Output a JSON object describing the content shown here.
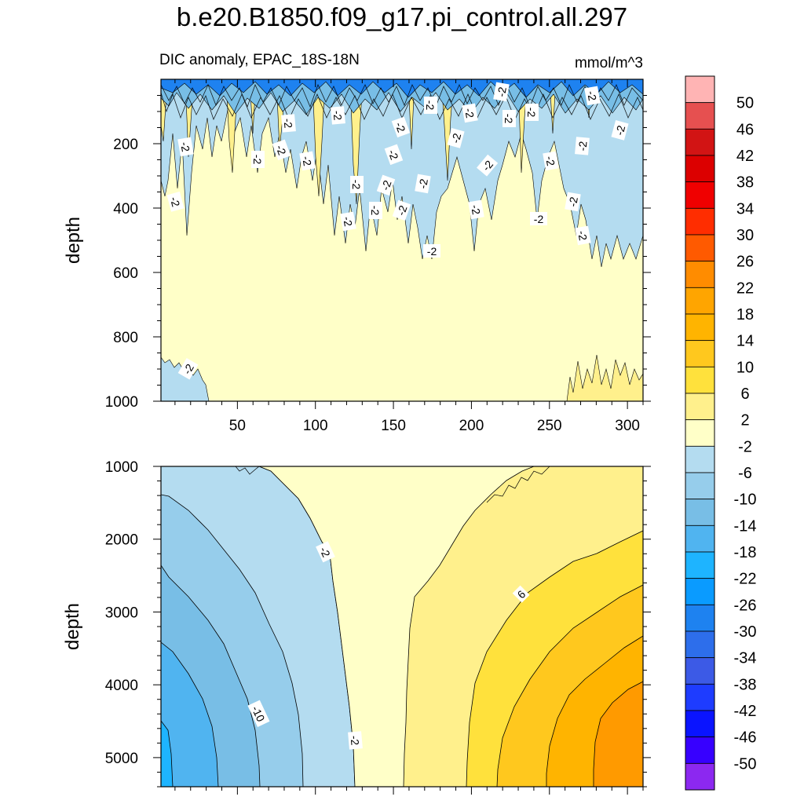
{
  "chart_data": {
    "type": "contour",
    "title": "b.e20.B1850.f09_g17.pi_control.all.297",
    "subtitle_left": "DIC anomaly, EPAC_18S-18N",
    "subtitle_right": "mmol/m^3",
    "colorbar": {
      "levels": [
        "50",
        "46",
        "42",
        "38",
        "34",
        "30",
        "26",
        "22",
        "18",
        "14",
        "10",
        "6",
        "2",
        "-2",
        "-6",
        "-10",
        "-14",
        "-18",
        "-22",
        "-26",
        "-30",
        "-34",
        "-38",
        "-42",
        "-46",
        "-50"
      ],
      "colors": [
        "#ffb4b4",
        "#e65050",
        "#d21414",
        "#dc0000",
        "#f00000",
        "#ff2d00",
        "#ff5a00",
        "#ff8c00",
        "#ffa500",
        "#ffb400",
        "#ffc81e",
        "#ffe13c",
        "#fff08c",
        "#ffffc8",
        "#b4dcf0",
        "#96cdeb",
        "#78bee6",
        "#50b4f0",
        "#1eb4ff",
        "#0a9bff",
        "#1e82f0",
        "#2d6eeb",
        "#3c5ae6",
        "#1e3cff",
        "#0a14ff",
        "#3700ff",
        "#8c28f0"
      ]
    },
    "panels": [
      {
        "name": "upper",
        "xlabel": "",
        "ylabel": "depth",
        "xlim": [
          1,
          310
        ],
        "ylim": [
          0,
          1000
        ],
        "y_reversed": true,
        "xticks": [
          "50",
          "100",
          "150",
          "200",
          "250",
          "300"
        ],
        "yticks": [
          "200",
          "400",
          "600",
          "800",
          "1000"
        ],
        "contour_labels": [
          "-2",
          "-2",
          "-2",
          "-2",
          "-2",
          "-2",
          "-2",
          "-2",
          "-2",
          "-2",
          "-2",
          "-2",
          "-2",
          "-2",
          "-2",
          "-2",
          "-2",
          "-2",
          "-2",
          "-2",
          "-2",
          "-2",
          "-2",
          "-2",
          "-2",
          "-2",
          "-2",
          "-2",
          "-2",
          "-2",
          "-2",
          "-2"
        ]
      },
      {
        "name": "lower",
        "xlabel": "",
        "ylabel": "depth",
        "xlim": [
          1,
          310
        ],
        "ylim": [
          1000,
          5400
        ],
        "y_reversed": true,
        "yticks": [
          "1000",
          "2000",
          "3000",
          "4000",
          "5000"
        ],
        "contour_labels": [
          "-2",
          "6",
          "-10",
          "-2"
        ]
      }
    ]
  }
}
